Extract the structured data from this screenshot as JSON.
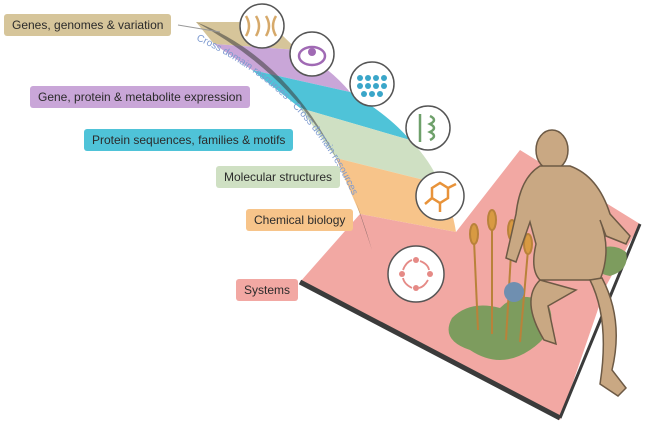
{
  "labels": {
    "genes": "Genes, genomes & variation",
    "expression": "Gene, protein & metabolite expression",
    "protein": "Protein sequences, families & motifs",
    "structures": "Molecular structures",
    "chemical": "Chemical biology",
    "systems": "Systems"
  },
  "arc_text": "Cross domain resources · Cross domain resources",
  "colors": {
    "genes": "#d6c59a",
    "expression": "#c9a6d8",
    "protein": "#4fc3d8",
    "structures": "#cfe0c3",
    "chemical": "#f7c48a",
    "systems": "#f2a8a3",
    "arc_text": "#7d9ad0"
  }
}
